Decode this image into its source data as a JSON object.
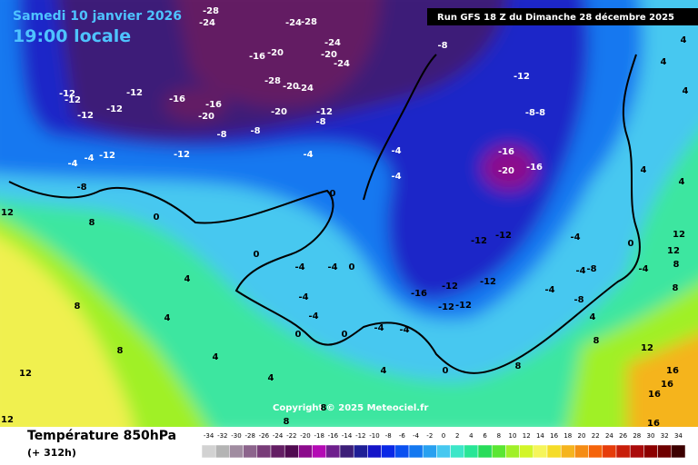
{
  "header": {
    "date": "Samedi 10 janvier 2026",
    "time": "19:00 locale",
    "run": "Run GFS 18 Z du Dimanche 28 décembre 2025"
  },
  "copyright": "Copyright © 2025 Meteociel.fr",
  "footer": {
    "title": "Température 850hPa",
    "lead": "(+ 312h)"
  },
  "map": {
    "labels": [
      "-28",
      "-24",
      "-24",
      "-28",
      "-16",
      "-20",
      "-24",
      "-20",
      "-24",
      "-28",
      "-20",
      "-24",
      "-16",
      "-16",
      "-20",
      "-8",
      "-20",
      "-12",
      "-8",
      "-8",
      "-12",
      "-12",
      "-12",
      "-12",
      "-12",
      "-12",
      "-4",
      "-4",
      "-12",
      "-8",
      "-8",
      "-12",
      "-8-8",
      "-16",
      "-20",
      "-16",
      "-4",
      "-4",
      "-4",
      "0",
      "0",
      "0",
      "0",
      "-4",
      "-4",
      "-12",
      "-12",
      "-4",
      "0",
      "-4",
      "-8",
      "-4",
      "-12",
      "-12",
      "-16",
      "-12",
      "-12",
      "-4",
      "-8",
      "-4",
      "-4",
      "0",
      "0",
      "-4",
      "-4",
      "0",
      "4",
      "4",
      "8",
      "8",
      "8",
      "4",
      "4",
      "12",
      "12",
      "12",
      "16",
      "16",
      "12",
      "12",
      "8",
      "8",
      "4",
      "4",
      "4",
      "4",
      "4",
      "8",
      "4",
      "8",
      "8",
      "4",
      "8",
      "16",
      "16",
      "12"
    ]
  },
  "scale": {
    "values": [
      -34,
      -32,
      -30,
      -28,
      -26,
      -24,
      -22,
      -20,
      -18,
      -16,
      -14,
      -12,
      -10,
      -8,
      -6,
      -4,
      -2,
      0,
      2,
      4,
      6,
      8,
      10,
      12,
      14,
      16,
      18,
      20,
      22,
      24,
      26,
      28,
      30,
      32,
      34
    ],
    "colors": [
      "#d2d2d2",
      "#b4b4b4",
      "#a08ca0",
      "#8c648c",
      "#783c78",
      "#641e64",
      "#500a50",
      "#8c0a8c",
      "#b40ab4",
      "#6e1e8c",
      "#3c1e78",
      "#1e1e96",
      "#1414c8",
      "#0a28e6",
      "#0a50f0",
      "#1478f0",
      "#28a0f0",
      "#46c8f0",
      "#3ce6c8",
      "#28e696",
      "#28dc5a",
      "#5ae632",
      "#a0f028",
      "#d2f528",
      "#f5f55a",
      "#f5dc28",
      "#f5b41e",
      "#f58c14",
      "#f5640a",
      "#e63c0a",
      "#c81e0a",
      "#aa0a0a",
      "#8c0000",
      "#6e0000",
      "#3c0000"
    ]
  }
}
